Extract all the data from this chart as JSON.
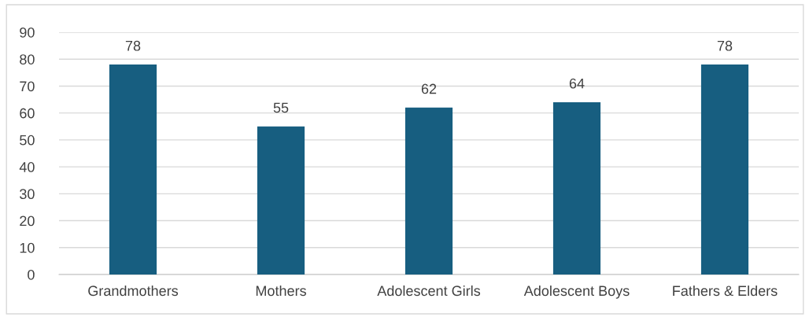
{
  "chart_data": {
    "type": "bar",
    "categories": [
      "Grandmothers",
      "Mothers",
      "Adolescent Girls",
      "Adolescent Boys",
      "Fathers & Elders"
    ],
    "values": [
      78,
      55,
      62,
      64,
      78
    ],
    "color": "#175e80",
    "data_labels": true,
    "ylim": [
      0,
      90
    ],
    "yticks": [
      0,
      10,
      20,
      30,
      40,
      50,
      60,
      70,
      80,
      90
    ],
    "grid": "y"
  }
}
